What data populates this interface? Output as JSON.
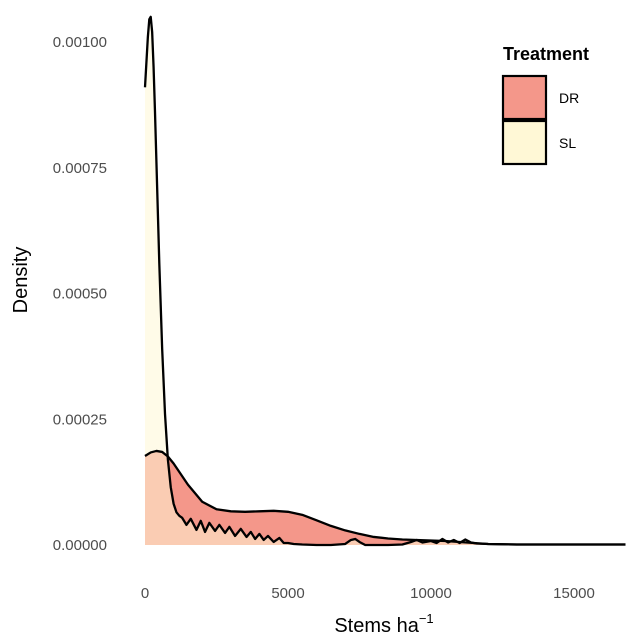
{
  "chart_data": {
    "type": "area",
    "subtype": "density",
    "xlabel": "Stems ha",
    "xlabel_superscript": "−1",
    "ylabel": "Density",
    "xlim": [
      -200,
      16800
    ],
    "ylim": [
      -3e-05,
      0.00106
    ],
    "x_ticks": [
      0,
      5000,
      10000,
      15000
    ],
    "x_tick_labels": [
      "0",
      "5000",
      "10000",
      "15000"
    ],
    "y_ticks": [
      0,
      0.00025,
      0.0005,
      0.00075,
      0.001
    ],
    "y_tick_labels": [
      "0.00000",
      "0.00025",
      "0.00050",
      "0.00075",
      "0.00100"
    ],
    "grid": false,
    "legend": {
      "title": "Treatment",
      "position": "top-right",
      "entries": [
        {
          "label": "DR",
          "color": "#F4978A"
        },
        {
          "label": "SL",
          "color": "#FFF8D6"
        }
      ]
    },
    "overlap_color": "#F7D4A6",
    "series": [
      {
        "name": "DR",
        "color": "#F4978A",
        "x": [
          0,
          200,
          400,
          600,
          800,
          1000,
          1500,
          2000,
          2500,
          3000,
          3500,
          4000,
          4500,
          5000,
          5500,
          6000,
          6500,
          7000,
          7500,
          8000,
          8500,
          9000,
          9500,
          10000,
          10500,
          11000,
          11500,
          12000,
          13000,
          14000,
          15000,
          16000,
          16800
        ],
        "y": [
          0.000177,
          0.000184,
          0.000187,
          0.000185,
          0.000176,
          0.000162,
          0.00012,
          8.6e-05,
          7.1e-05,
          6.7e-05,
          6.6e-05,
          6.7e-05,
          6.8e-05,
          6.6e-05,
          6e-05,
          4.9e-05,
          3.8e-05,
          2.9e-05,
          2.2e-05,
          1.6e-05,
          1.3e-05,
          1.1e-05,
          1e-05,
          9e-06,
          8e-06,
          6e-06,
          4e-06,
          2e-06,
          1e-06,
          1e-06,
          1e-06,
          1e-06,
          1e-06
        ]
      },
      {
        "name": "SL",
        "color": "#FFF8D6",
        "x": [
          0,
          50,
          100,
          150,
          200,
          250,
          300,
          350,
          400,
          500,
          600,
          700,
          800,
          900,
          1000,
          1100,
          1200,
          1300,
          1450,
          1600,
          1800,
          1950,
          2100,
          2250,
          2450,
          2600,
          2800,
          2950,
          3150,
          3350,
          3550,
          3700,
          3850,
          4000,
          4150,
          4300,
          4500,
          4700,
          4850,
          5000,
          5200,
          5500,
          6000,
          6500,
          7000,
          7200,
          7350,
          7500,
          7700,
          8000,
          8500,
          9000,
          9300,
          9500,
          9700,
          10000,
          10200,
          10400,
          10600,
          10800,
          11000,
          11200,
          11400,
          11600,
          12000,
          13000,
          14000,
          15000,
          16000,
          16800
        ],
        "y": [
          0.00091,
          0.00096,
          0.00101,
          0.001045,
          0.00105,
          0.00102,
          0.00095,
          0.00086,
          0.00076,
          0.00056,
          0.00039,
          0.00026,
          0.00017,
          0.000115,
          8.2e-05,
          6.5e-05,
          5.8e-05,
          5.4e-05,
          4e-05,
          5.2e-05,
          3e-05,
          4.8e-05,
          2.6e-05,
          4.4e-05,
          2.8e-05,
          4e-05,
          2.4e-05,
          3.6e-05,
          1.8e-05,
          3.2e-05,
          1.6e-05,
          2.6e-05,
          1.2e-05,
          2.2e-05,
          1e-05,
          1.8e-05,
          6e-06,
          1.4e-05,
          4e-06,
          4e-06,
          2e-06,
          1e-06,
          0.0,
          0.0,
          2e-06,
          1e-05,
          1.2e-05,
          6e-06,
          0.0,
          0.0,
          0.0,
          1e-06,
          6e-06,
          1e-05,
          5e-06,
          8e-06,
          4e-06,
          1.2e-05,
          5e-06,
          1e-05,
          4e-06,
          1.1e-05,
          5e-06,
          3e-06,
          2e-06,
          1e-06,
          1e-06,
          1e-06,
          1e-06,
          1e-06
        ]
      }
    ]
  }
}
